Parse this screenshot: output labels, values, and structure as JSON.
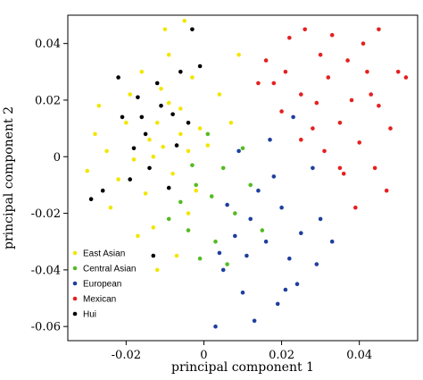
{
  "chart_data": {
    "type": "scatter",
    "xlabel": "principal component 1",
    "ylabel": "principal component 2",
    "xlim": [
      -0.035,
      0.055
    ],
    "ylim": [
      -0.065,
      0.05
    ],
    "x_ticks": [
      "-0.02",
      "0",
      "0.02",
      "0.04"
    ],
    "y_ticks": [
      "-0.06",
      "-0.04",
      "-0.02",
      "0",
      "0.02",
      "0.04"
    ],
    "x_tick_values": [
      -0.02,
      0,
      0.02,
      0.04
    ],
    "y_tick_values": [
      -0.06,
      -0.04,
      -0.02,
      0,
      0.02,
      0.04
    ],
    "grid": false,
    "legend_position": "bottom-left",
    "legend": [
      "East Asian",
      "Central Asian",
      "European",
      "Mexican",
      "Hui"
    ],
    "series": [
      {
        "name": "East Asian",
        "color": "#f2e600",
        "points": [
          [
            -0.0105,
            0.0035
          ],
          [
            -0.014,
            0.006
          ],
          [
            -0.018,
            -0.001
          ],
          [
            -0.008,
            -0.006
          ],
          [
            -0.012,
            0.012
          ],
          [
            -0.02,
            0.012
          ],
          [
            -0.025,
            0.002
          ],
          [
            -0.006,
            0.017
          ],
          [
            -0.015,
            -0.013
          ],
          [
            -0.004,
            0.002
          ],
          [
            -0.022,
            -0.008
          ],
          [
            -0.011,
            0.024
          ],
          [
            -0.016,
            0.03
          ],
          [
            -0.009,
            0.036
          ],
          [
            -0.003,
            0.028
          ],
          [
            -0.01,
            0.045
          ],
          [
            -0.005,
            0.048
          ],
          [
            -0.019,
            0.022
          ],
          [
            -0.028,
            0.008
          ],
          [
            -0.03,
            -0.005
          ],
          [
            -0.001,
            0.01
          ],
          [
            -0.002,
            -0.012
          ],
          [
            0.001,
            0.004
          ],
          [
            -0.013,
            -0.025
          ],
          [
            -0.007,
            -0.035
          ],
          [
            -0.012,
            -0.04
          ],
          [
            -0.017,
            -0.028
          ],
          [
            -0.004,
            -0.02
          ],
          [
            0.004,
            0.022
          ],
          [
            0.007,
            0.012
          ],
          [
            0.009,
            0.036
          ],
          [
            -0.024,
            -0.018
          ],
          [
            -0.027,
            0.018
          ],
          [
            -0.006,
            0.008
          ],
          [
            -0.013,
            0.0
          ],
          [
            -0.009,
            0.019
          ]
        ]
      },
      {
        "name": "Central Asian",
        "color": "#55bb22",
        "points": [
          [
            -0.002,
            -0.01
          ],
          [
            0.002,
            -0.014
          ],
          [
            -0.006,
            -0.016
          ],
          [
            0.005,
            -0.004
          ],
          [
            -0.004,
            -0.026
          ],
          [
            0.008,
            -0.02
          ],
          [
            0.003,
            -0.03
          ],
          [
            -0.001,
            -0.036
          ],
          [
            0.012,
            -0.01
          ],
          [
            0.01,
            0.003
          ],
          [
            0.001,
            0.008
          ],
          [
            -0.009,
            -0.022
          ],
          [
            0.006,
            -0.038
          ],
          [
            0.015,
            -0.026
          ],
          [
            -0.003,
            -0.003
          ]
        ]
      },
      {
        "name": "European",
        "color": "#1f3f9e",
        "points": [
          [
            0.012,
            -0.022
          ],
          [
            0.016,
            -0.03
          ],
          [
            0.008,
            -0.028
          ],
          [
            0.02,
            -0.018
          ],
          [
            0.005,
            -0.04
          ],
          [
            0.01,
            -0.048
          ],
          [
            0.022,
            -0.036
          ],
          [
            0.025,
            -0.027
          ],
          [
            0.014,
            -0.012
          ],
          [
            0.018,
            -0.007
          ],
          [
            0.024,
            -0.045
          ],
          [
            0.029,
            -0.038
          ],
          [
            0.03,
            -0.022
          ],
          [
            0.006,
            -0.017
          ],
          [
            0.004,
            -0.034
          ],
          [
            0.019,
            -0.052
          ],
          [
            0.013,
            -0.058
          ],
          [
            0.003,
            -0.06
          ],
          [
            0.009,
            0.002
          ],
          [
            0.017,
            0.006
          ],
          [
            0.023,
            0.014
          ],
          [
            0.028,
            -0.004
          ],
          [
            0.033,
            -0.03
          ],
          [
            0.021,
            -0.047
          ],
          [
            0.011,
            -0.035
          ]
        ]
      },
      {
        "name": "Mexican",
        "color": "#e52020",
        "points": [
          [
            0.025,
            0.022
          ],
          [
            0.032,
            0.028
          ],
          [
            0.038,
            0.02
          ],
          [
            0.028,
            0.01
          ],
          [
            0.035,
            0.012
          ],
          [
            0.042,
            0.03
          ],
          [
            0.03,
            0.036
          ],
          [
            0.021,
            0.03
          ],
          [
            0.045,
            0.018
          ],
          [
            0.04,
            0.005
          ],
          [
            0.033,
            0.043
          ],
          [
            0.026,
            0.045
          ],
          [
            0.048,
            0.01
          ],
          [
            0.044,
            -0.004
          ],
          [
            0.039,
            -0.018
          ],
          [
            0.036,
            -0.006
          ],
          [
            0.02,
            0.016
          ],
          [
            0.018,
            0.026
          ],
          [
            0.016,
            0.034
          ],
          [
            0.022,
            0.042
          ],
          [
            0.014,
            0.026
          ],
          [
            0.05,
            0.03
          ],
          [
            0.052,
            0.028
          ],
          [
            0.047,
            -0.012
          ],
          [
            0.031,
            0.002
          ],
          [
            0.041,
            0.04
          ],
          [
            0.045,
            0.045
          ],
          [
            0.025,
            0.006
          ],
          [
            0.035,
            -0.004
          ],
          [
            0.043,
            0.022
          ],
          [
            0.037,
            0.034
          ],
          [
            0.029,
            0.019
          ]
        ]
      },
      {
        "name": "Hui",
        "color": "#000000",
        "points": [
          [
            -0.017,
            0.021
          ],
          [
            -0.021,
            0.014
          ],
          [
            -0.011,
            0.018
          ],
          [
            -0.007,
            0.004
          ],
          [
            -0.014,
            -0.004
          ],
          [
            -0.018,
            0.003
          ],
          [
            -0.012,
            0.026
          ],
          [
            -0.008,
            0.015
          ],
          [
            -0.004,
            0.012
          ],
          [
            -0.019,
            -0.008
          ],
          [
            -0.026,
            -0.012
          ],
          [
            -0.029,
            -0.015
          ],
          [
            -0.015,
            0.008
          ],
          [
            -0.009,
            -0.011
          ],
          [
            -0.013,
            -0.035
          ],
          [
            -0.006,
            0.03
          ],
          [
            -0.001,
            0.032
          ],
          [
            -0.003,
            0.045
          ],
          [
            -0.022,
            0.028
          ],
          [
            -0.016,
            0.014
          ]
        ]
      }
    ]
  }
}
